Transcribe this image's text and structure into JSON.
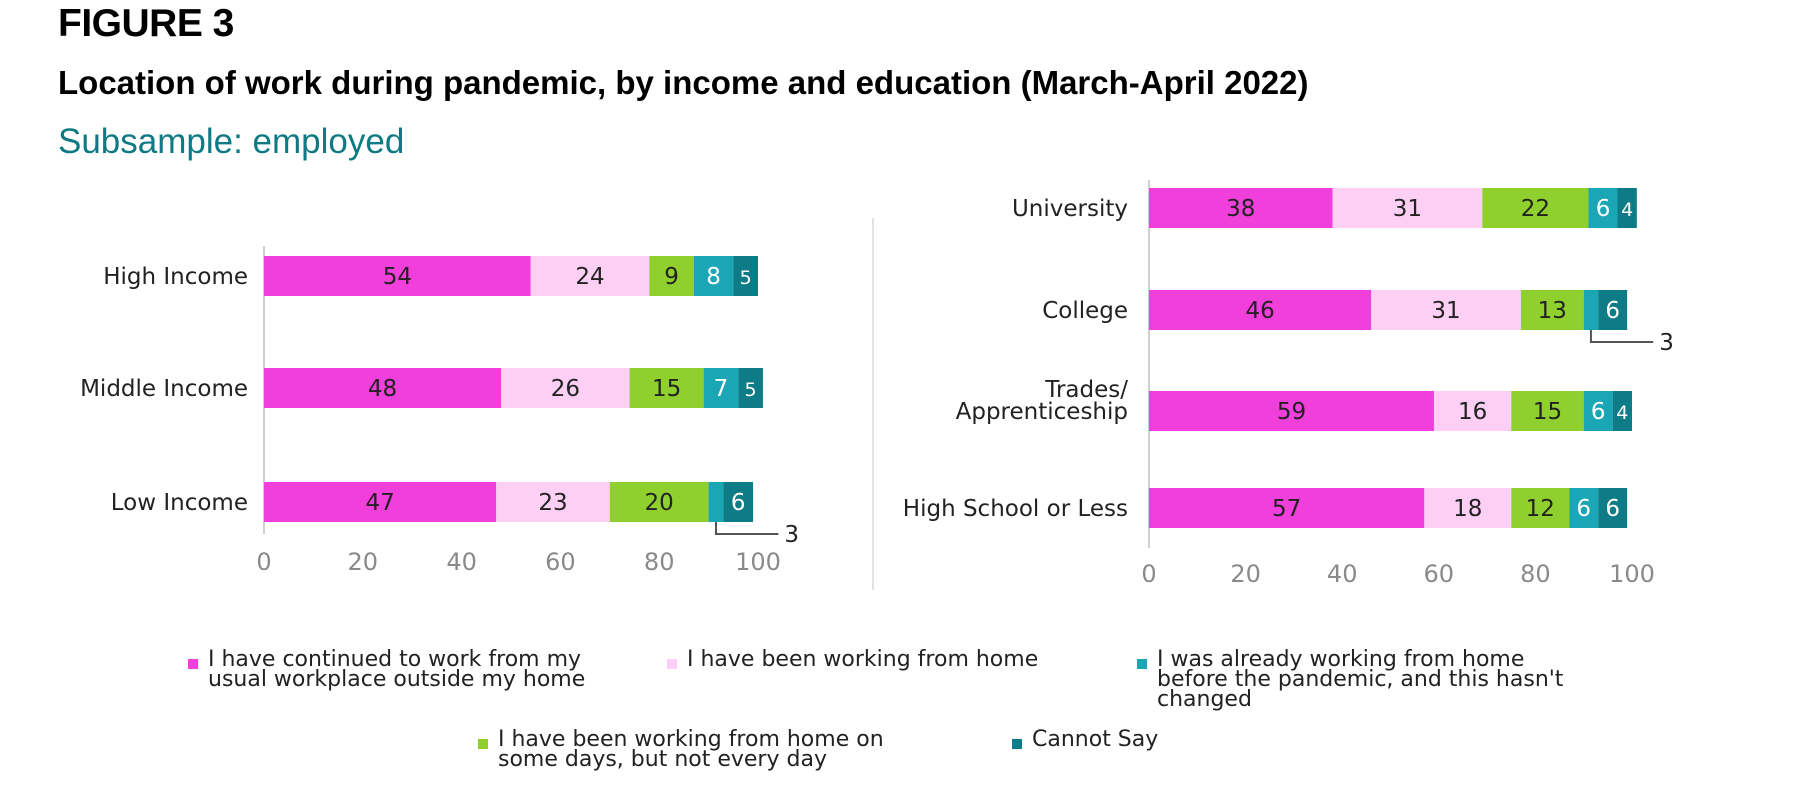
{
  "figure_label": "FIGURE 3",
  "title": "Location of work during pandemic, by income and education (March-April 2022)",
  "subtitle": "Subsample: employed",
  "chart_data": [
    {
      "type": "bar",
      "orientation": "horizontal",
      "stacked": true,
      "categories": [
        "High Income",
        "Middle Income",
        "Low Income"
      ],
      "category_lines": [
        [
          "High Income"
        ],
        [
          "Middle Income"
        ],
        [
          "Low Income"
        ]
      ],
      "series": [
        {
          "name": "I have continued to work from my usual workplace outside my home",
          "color": "#f03fda",
          "values": [
            54,
            48,
            47
          ]
        },
        {
          "name": "I have been working from home",
          "color": "#fdcff5",
          "values": [
            24,
            26,
            23
          ]
        },
        {
          "name": "I have been working from home on some days, but not every day",
          "color": "#8fd02f",
          "values": [
            9,
            15,
            20
          ]
        },
        {
          "name": "I was already working from home before the pandemic, and this hasn't changed",
          "color": "#1ba6b6",
          "values": [
            8,
            7,
            3
          ]
        },
        {
          "name": "Cannot Say",
          "color": "#0e7c86",
          "values": [
            5,
            5,
            6
          ]
        }
      ],
      "callouts": [
        {
          "category": "Low Income",
          "series": "I was already working from home before the pandemic, and this hasn't changed",
          "label": "3"
        }
      ],
      "xlim": [
        0,
        100
      ],
      "xticks": [
        0,
        20,
        40,
        60,
        80,
        100
      ],
      "xlabel": "",
      "ylabel": ""
    },
    {
      "type": "bar",
      "orientation": "horizontal",
      "stacked": true,
      "categories": [
        "University",
        "College",
        "Trades/ Apprenticeship",
        "High School or Less"
      ],
      "category_lines": [
        [
          "University"
        ],
        [
          "College"
        ],
        [
          "Trades/",
          "Apprenticeship"
        ],
        [
          "High School or Less"
        ]
      ],
      "series": [
        {
          "name": "I have continued to work from my usual workplace outside my home",
          "color": "#f03fda",
          "values": [
            38,
            46,
            59,
            57
          ]
        },
        {
          "name": "I have been working from home",
          "color": "#fdcff5",
          "values": [
            31,
            31,
            16,
            18
          ]
        },
        {
          "name": "I have been working from home on some days, but not every day",
          "color": "#8fd02f",
          "values": [
            22,
            13,
            15,
            12
          ]
        },
        {
          "name": "I was already working from home before the pandemic, and this hasn't changed",
          "color": "#1ba6b6",
          "values": [
            6,
            3,
            6,
            6
          ]
        },
        {
          "name": "Cannot Say",
          "color": "#0e7c86",
          "values": [
            4,
            6,
            4,
            6
          ]
        }
      ],
      "callouts": [
        {
          "category": "College",
          "series": "I was already working from home before the pandemic, and this hasn't changed",
          "label": "3"
        }
      ],
      "xlim": [
        0,
        100
      ],
      "xticks": [
        0,
        20,
        40,
        60,
        80,
        100
      ],
      "xlabel": "",
      "ylabel": ""
    }
  ],
  "legend": {
    "items": [
      {
        "lines": [
          "I have continued to work from my",
          "usual workplace outside my home"
        ],
        "color": "#f03fda"
      },
      {
        "lines": [
          "I have been working from home"
        ],
        "color": "#fdcff5"
      },
      {
        "lines": [
          "I was already working from home",
          "before the pandemic, and this hasn't",
          "changed"
        ],
        "color": "#1ba6b6"
      },
      {
        "lines": [
          "I have been working from home on",
          "some days, but not every day"
        ],
        "color": "#8fd02f"
      },
      {
        "lines": [
          "Cannot Say"
        ],
        "color": "#0e7c86"
      }
    ]
  }
}
